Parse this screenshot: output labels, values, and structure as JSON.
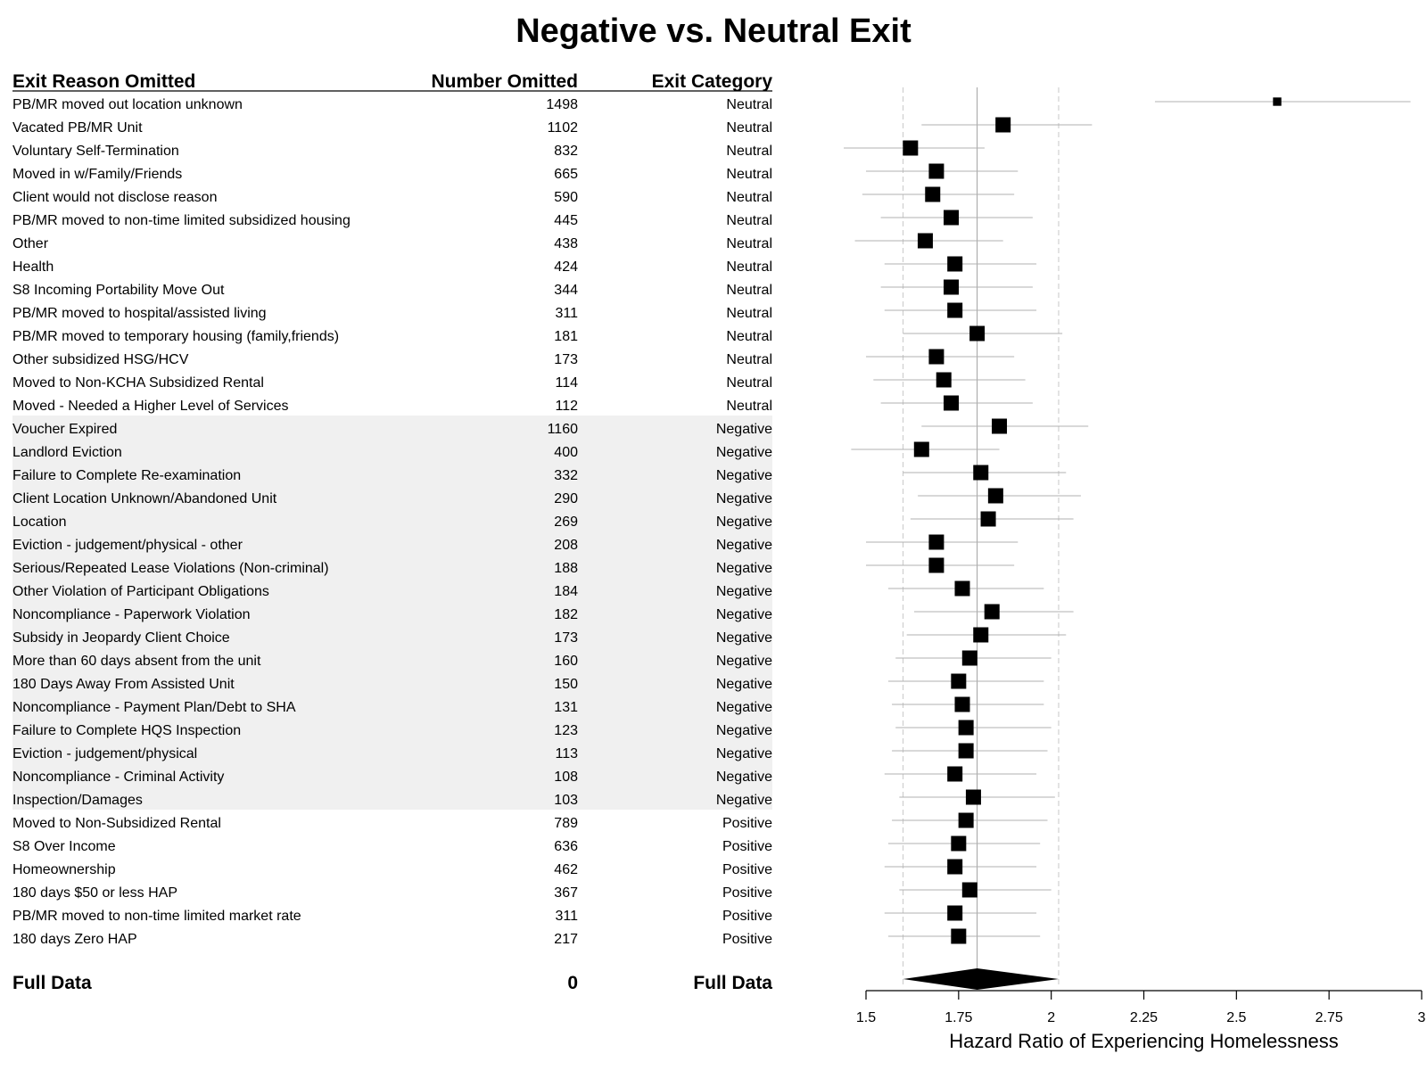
{
  "chart_data": {
    "type": "forest",
    "title": "Negative vs. Neutral Exit",
    "columns": {
      "reason": "Exit Reason Omitted",
      "number": "Number Omitted",
      "category": "Exit Category"
    },
    "xlabel": "Hazard Ratio of Experiencing Homelessness",
    "xlim": [
      1.5,
      3
    ],
    "xticks": [
      "1.5",
      "1.75",
      "2",
      "2.25",
      "2.5",
      "2.75",
      "3"
    ],
    "reference_lines": {
      "estimate": 1.8,
      "lower": 1.6,
      "upper": 2.02
    },
    "highlight_category": "Negative",
    "colors": {
      "highlight_band": "#f0f0f0",
      "ci_line": "#b0b0b0",
      "ref_dashed": "#c8c8c8",
      "ref_solid": "#a0a0a0",
      "marker": "#000000"
    },
    "rows": [
      {
        "reason": "PB/MR moved out location unknown",
        "number": "1498",
        "category": "Neutral",
        "hr": 2.61,
        "lo": 2.28,
        "hi": 2.97,
        "size": 0.55
      },
      {
        "reason": "Vacated PB/MR Unit",
        "number": "1102",
        "category": "Neutral",
        "hr": 1.87,
        "lo": 1.65,
        "hi": 2.11,
        "size": 1
      },
      {
        "reason": "Voluntary Self-Termination",
        "number": "832",
        "category": "Neutral",
        "hr": 1.62,
        "lo": 1.44,
        "hi": 1.82,
        "size": 1
      },
      {
        "reason": "Moved in w/Family/Friends",
        "number": "665",
        "category": "Neutral",
        "hr": 1.69,
        "lo": 1.5,
        "hi": 1.91,
        "size": 1
      },
      {
        "reason": "Client would not disclose reason",
        "number": "590",
        "category": "Neutral",
        "hr": 1.68,
        "lo": 1.49,
        "hi": 1.9,
        "size": 1
      },
      {
        "reason": "PB/MR moved to non-time limited subsidized housing",
        "number": "445",
        "category": "Neutral",
        "hr": 1.73,
        "lo": 1.54,
        "hi": 1.95,
        "size": 1
      },
      {
        "reason": "Other",
        "number": "438",
        "category": "Neutral",
        "hr": 1.66,
        "lo": 1.47,
        "hi": 1.87,
        "size": 1
      },
      {
        "reason": "Health",
        "number": "424",
        "category": "Neutral",
        "hr": 1.74,
        "lo": 1.55,
        "hi": 1.96,
        "size": 1
      },
      {
        "reason": "S8 Incoming Portability Move Out",
        "number": "344",
        "category": "Neutral",
        "hr": 1.73,
        "lo": 1.54,
        "hi": 1.95,
        "size": 1
      },
      {
        "reason": "PB/MR moved to hospital/assisted living",
        "number": "311",
        "category": "Neutral",
        "hr": 1.74,
        "lo": 1.55,
        "hi": 1.96,
        "size": 1
      },
      {
        "reason": "PB/MR moved to temporary housing (family,friends)",
        "number": "181",
        "category": "Neutral",
        "hr": 1.8,
        "lo": 1.6,
        "hi": 2.03,
        "size": 1
      },
      {
        "reason": "Other subsidized HSG/HCV",
        "number": "173",
        "category": "Neutral",
        "hr": 1.69,
        "lo": 1.5,
        "hi": 1.9,
        "size": 1
      },
      {
        "reason": "Moved to Non-KCHA Subsidized Rental",
        "number": "114",
        "category": "Neutral",
        "hr": 1.71,
        "lo": 1.52,
        "hi": 1.93,
        "size": 1
      },
      {
        "reason": "Moved - Needed a Higher Level of Services",
        "number": "112",
        "category": "Neutral",
        "hr": 1.73,
        "lo": 1.54,
        "hi": 1.95,
        "size": 1
      },
      {
        "reason": "Voucher Expired",
        "number": "1160",
        "category": "Negative",
        "hr": 1.86,
        "lo": 1.65,
        "hi": 2.1,
        "size": 1
      },
      {
        "reason": "Landlord Eviction",
        "number": "400",
        "category": "Negative",
        "hr": 1.65,
        "lo": 1.46,
        "hi": 1.86,
        "size": 1
      },
      {
        "reason": "Failure to Complete Re-examination",
        "number": "332",
        "category": "Negative",
        "hr": 1.81,
        "lo": 1.6,
        "hi": 2.04,
        "size": 1
      },
      {
        "reason": "Client Location Unknown/Abandoned Unit",
        "number": "290",
        "category": "Negative",
        "hr": 1.85,
        "lo": 1.64,
        "hi": 2.08,
        "size": 1
      },
      {
        "reason": "Location",
        "number": "269",
        "category": "Negative",
        "hr": 1.83,
        "lo": 1.62,
        "hi": 2.06,
        "size": 1
      },
      {
        "reason": "Eviction - judgement/physical - other",
        "number": "208",
        "category": "Negative",
        "hr": 1.69,
        "lo": 1.5,
        "hi": 1.91,
        "size": 1
      },
      {
        "reason": "Serious/Repeated Lease Violations (Non-criminal)",
        "number": "188",
        "category": "Negative",
        "hr": 1.69,
        "lo": 1.5,
        "hi": 1.9,
        "size": 1
      },
      {
        "reason": "Other Violation of Participant Obligations",
        "number": "184",
        "category": "Negative",
        "hr": 1.76,
        "lo": 1.56,
        "hi": 1.98,
        "size": 1
      },
      {
        "reason": "Noncompliance - Paperwork Violation",
        "number": "182",
        "category": "Negative",
        "hr": 1.84,
        "lo": 1.63,
        "hi": 2.06,
        "size": 1
      },
      {
        "reason": "Subsidy in Jeopardy Client Choice",
        "number": "173",
        "category": "Negative",
        "hr": 1.81,
        "lo": 1.61,
        "hi": 2.04,
        "size": 1
      },
      {
        "reason": "More than 60 days absent from the unit",
        "number": "160",
        "category": "Negative",
        "hr": 1.78,
        "lo": 1.58,
        "hi": 2.0,
        "size": 1
      },
      {
        "reason": "180 Days Away From Assisted Unit",
        "number": "150",
        "category": "Negative",
        "hr": 1.75,
        "lo": 1.56,
        "hi": 1.98,
        "size": 1
      },
      {
        "reason": "Noncompliance - Payment Plan/Debt to SHA",
        "number": "131",
        "category": "Negative",
        "hr": 1.76,
        "lo": 1.57,
        "hi": 1.98,
        "size": 1
      },
      {
        "reason": "Failure to Complete HQS Inspection",
        "number": "123",
        "category": "Negative",
        "hr": 1.77,
        "lo": 1.58,
        "hi": 2.0,
        "size": 1
      },
      {
        "reason": "Eviction - judgement/physical",
        "number": "113",
        "category": "Negative",
        "hr": 1.77,
        "lo": 1.57,
        "hi": 1.99,
        "size": 1
      },
      {
        "reason": "Noncompliance - Criminal Activity",
        "number": "108",
        "category": "Negative",
        "hr": 1.74,
        "lo": 1.55,
        "hi": 1.96,
        "size": 1
      },
      {
        "reason": "Inspection/Damages",
        "number": "103",
        "category": "Negative",
        "hr": 1.79,
        "lo": 1.59,
        "hi": 2.01,
        "size": 1
      },
      {
        "reason": "Moved to Non-Subsidized Rental",
        "number": "789",
        "category": "Positive",
        "hr": 1.77,
        "lo": 1.57,
        "hi": 1.99,
        "size": 1
      },
      {
        "reason": "S8 Over Income",
        "number": "636",
        "category": "Positive",
        "hr": 1.75,
        "lo": 1.56,
        "hi": 1.97,
        "size": 1
      },
      {
        "reason": "Homeownership",
        "number": "462",
        "category": "Positive",
        "hr": 1.74,
        "lo": 1.55,
        "hi": 1.96,
        "size": 1
      },
      {
        "reason": "180 days $50 or less HAP",
        "number": "367",
        "category": "Positive",
        "hr": 1.78,
        "lo": 1.59,
        "hi": 2.0,
        "size": 1
      },
      {
        "reason": "PB/MR moved to non-time limited market rate",
        "number": "311",
        "category": "Positive",
        "hr": 1.74,
        "lo": 1.55,
        "hi": 1.96,
        "size": 1
      },
      {
        "reason": "180 days Zero HAP",
        "number": "217",
        "category": "Positive",
        "hr": 1.75,
        "lo": 1.56,
        "hi": 1.97,
        "size": 1
      }
    ],
    "summary": {
      "reason": "Full Data",
      "number": "0",
      "category": "Full Data",
      "hr": 1.8,
      "lo": 1.6,
      "hi": 2.02
    }
  }
}
